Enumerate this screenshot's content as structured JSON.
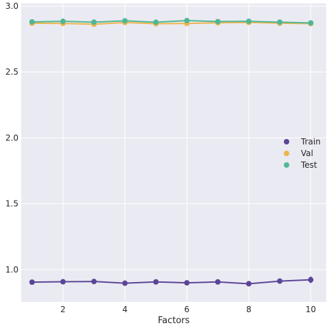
{
  "chart_data": {
    "type": "line",
    "title": "",
    "xlabel": "Factors",
    "ylabel": "",
    "xlim": [
      0.65,
      10.5
    ],
    "ylim": [
      0.755,
      3.02
    ],
    "xticks": [
      2,
      4,
      6,
      8,
      10
    ],
    "yticks": [
      1.0,
      1.5,
      2.0,
      2.5,
      3.0
    ],
    "ytick_labels": [
      "1.0",
      "1.5",
      "2.0",
      "2.5",
      "3.0"
    ],
    "grid": true,
    "legend_position": "right",
    "x": [
      1,
      2,
      3,
      4,
      5,
      6,
      7,
      8,
      9,
      10
    ],
    "series": [
      {
        "name": "Train",
        "color": "#5b4597",
        "values": [
          0.905,
          0.908,
          0.91,
          0.897,
          0.907,
          0.9,
          0.907,
          0.893,
          0.913,
          0.923
        ],
        "errors": [
          0.015,
          0.012,
          0.01,
          0.01,
          0.008,
          0.01,
          0.008,
          0.015,
          0.01,
          0.025
        ]
      },
      {
        "name": "Val",
        "color": "#eeb44e",
        "values": [
          2.87,
          2.868,
          2.862,
          2.875,
          2.866,
          2.868,
          2.873,
          2.876,
          2.87,
          2.867
        ],
        "errors": [
          0.008,
          0.008,
          0.006,
          0.007,
          0.006,
          0.008,
          0.006,
          0.006,
          0.008,
          0.008
        ]
      },
      {
        "name": "Test",
        "color": "#4fb796",
        "values": [
          2.88,
          2.884,
          2.878,
          2.888,
          2.877,
          2.89,
          2.882,
          2.884,
          2.878,
          2.872
        ],
        "errors": [
          0.015,
          0.02,
          0.012,
          0.012,
          0.015,
          0.018,
          0.01,
          0.012,
          0.012,
          0.012
        ]
      }
    ]
  }
}
